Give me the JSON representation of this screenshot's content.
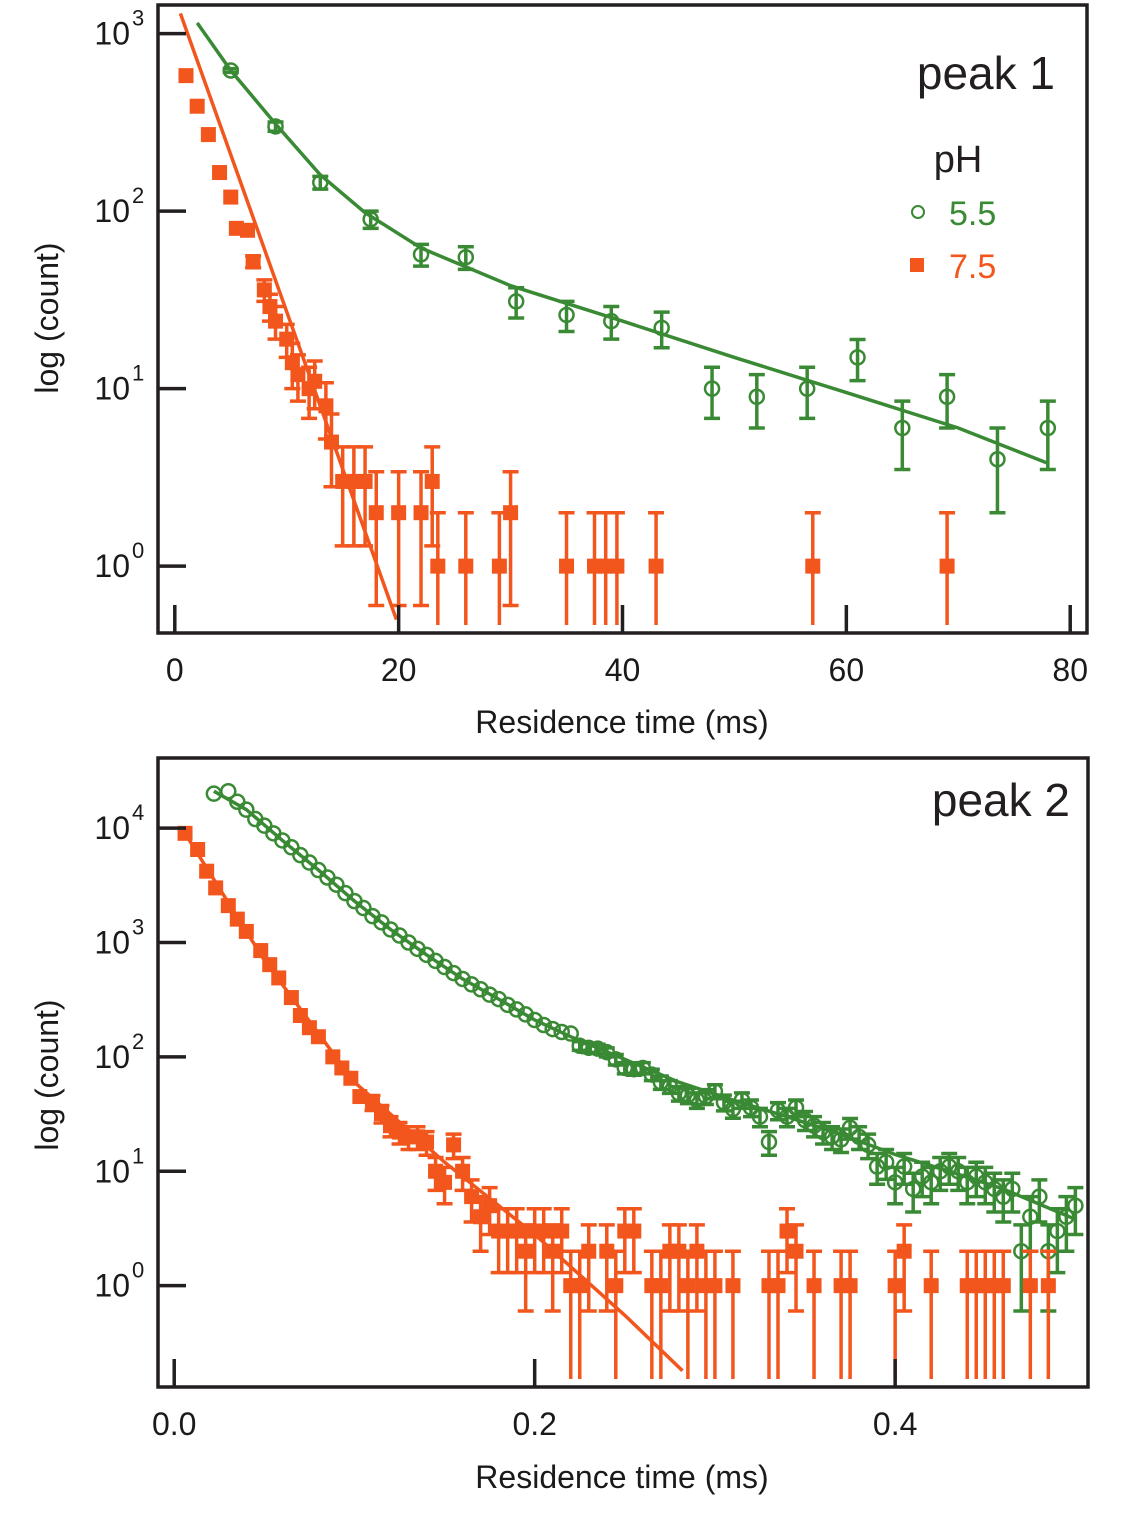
{
  "colors": {
    "green": "#3a8a35",
    "orange": "#f2561d",
    "axis": "#231f20"
  },
  "chart_data": [
    {
      "type": "scatter",
      "panel_label": "peak 1",
      "xlabel": "Residence time (ms)",
      "ylabel": "log (count)",
      "yscale": "log",
      "xlim": [
        -1.5,
        81.5
      ],
      "ylim": [
        0.42,
        1450
      ],
      "xticks": [
        0,
        20,
        40,
        60,
        80
      ],
      "xtick_labels": [
        "0",
        "20",
        "40",
        "60",
        "80"
      ],
      "yticks": [
        1,
        10,
        100,
        1000
      ],
      "ytick_labels": [
        {
          "base": "10",
          "exp": "0"
        },
        {
          "base": "10",
          "exp": "1"
        },
        {
          "base": "10",
          "exp": "2"
        },
        {
          "base": "10",
          "exp": "3"
        }
      ],
      "legend": {
        "title": "pH",
        "placement": "top-right",
        "entries": [
          "5.5",
          "7.5"
        ]
      },
      "series": [
        {
          "name": "5.5",
          "marker": "open-circle",
          "color_key": "green",
          "x": [
            5,
            9,
            13,
            17.5,
            22,
            26,
            30.5,
            35,
            39,
            43.5,
            48,
            52,
            56.5,
            61,
            65,
            69,
            73.5,
            78
          ],
          "y": [
            620,
            300,
            145,
            90,
            57,
            55,
            31,
            26,
            24,
            22,
            10,
            9,
            10,
            15,
            6,
            9,
            4,
            6
          ],
          "yerr_lo": [
            15,
            18,
            12,
            10,
            8,
            8,
            6,
            5,
            5,
            5,
            3.2,
            3,
            3.2,
            3.9,
            2.5,
            3,
            2,
            2.5
          ],
          "yerr_hi": [
            15,
            18,
            12,
            10,
            8,
            8,
            6,
            5,
            5,
            5,
            3.2,
            3,
            3.2,
            3.9,
            2.5,
            3,
            2,
            2.5
          ],
          "fit": {
            "x": [
              2,
              5,
              9,
              13,
              17,
              22,
              30,
              40,
              50,
              60,
              70,
              78
            ],
            "y": [
              1150,
              620,
              310,
              160,
              98,
              62,
              38,
              24,
              15,
              9.5,
              6,
              3.8
            ]
          }
        },
        {
          "name": "7.5",
          "marker": "filled-square",
          "color_key": "orange",
          "x": [
            1,
            2,
            3,
            4,
            5,
            5.5,
            6.5,
            7,
            8,
            8.5,
            9,
            10,
            10.5,
            11,
            12,
            12.5,
            13.5,
            14,
            15,
            16,
            17,
            18,
            20,
            22,
            23,
            23.5,
            26,
            29,
            30,
            35,
            37.5,
            38.5,
            39.5,
            43,
            57,
            69
          ],
          "y": [
            580,
            390,
            270,
            165,
            120,
            80,
            78,
            52,
            36,
            29,
            24,
            19,
            14,
            12,
            10,
            11,
            8,
            5,
            3,
            3,
            3,
            2,
            2,
            2,
            3,
            1,
            1,
            1,
            2,
            1,
            1,
            1,
            1,
            1,
            1,
            1
          ],
          "yerr_lo": [
            0,
            0,
            0,
            0,
            0,
            0,
            0,
            4,
            5,
            5,
            5,
            4,
            4,
            3.5,
            3.2,
            3.3,
            2.8,
            2.2,
            1.7,
            1.7,
            1.7,
            1.4,
            1.4,
            1.4,
            1.7,
            1,
            1,
            1,
            1.4,
            1,
            1,
            1,
            1,
            1,
            1,
            1
          ],
          "yerr_hi": [
            0,
            0,
            0,
            0,
            0,
            0,
            0,
            4,
            5,
            5,
            5,
            4,
            4,
            3.5,
            3.2,
            3.3,
            2.8,
            2.2,
            1.7,
            1.7,
            1.7,
            1.4,
            1.4,
            1.4,
            1.7,
            1,
            1,
            1,
            1.4,
            1,
            1,
            1,
            1,
            1,
            1,
            1
          ],
          "fit": {
            "x": [
              0.5,
              19.8
            ],
            "y": [
              1300,
              0.5
            ]
          }
        }
      ]
    },
    {
      "type": "scatter",
      "panel_label": "peak 2",
      "xlabel": "Residence time (ms)",
      "ylabel": "log (count)",
      "yscale": "log",
      "xlim": [
        -0.009,
        0.507
      ],
      "ylim": [
        0.13,
        41000
      ],
      "xticks": [
        0.0,
        0.2,
        0.4
      ],
      "xtick_labels": [
        "0.0",
        "0.2",
        "0.4"
      ],
      "yticks": [
        1,
        10,
        100,
        1000,
        10000
      ],
      "ytick_labels": [
        {
          "base": "10",
          "exp": "0"
        },
        {
          "base": "10",
          "exp": "1"
        },
        {
          "base": "10",
          "exp": "2"
        },
        {
          "base": "10",
          "exp": "3"
        },
        {
          "base": "10",
          "exp": "4"
        }
      ],
      "series": [
        {
          "name": "5.5",
          "marker": "open-circle",
          "color_key": "green",
          "x": [
            0.022,
            0.03,
            0.035,
            0.04,
            0.045,
            0.05,
            0.055,
            0.06,
            0.065,
            0.07,
            0.075,
            0.08,
            0.085,
            0.09,
            0.095,
            0.1,
            0.105,
            0.11,
            0.115,
            0.12,
            0.125,
            0.13,
            0.135,
            0.14,
            0.145,
            0.15,
            0.155,
            0.16,
            0.165,
            0.17,
            0.175,
            0.18,
            0.185,
            0.19,
            0.195,
            0.2,
            0.205,
            0.21,
            0.215,
            0.22,
            0.225,
            0.23,
            0.235,
            0.24,
            0.245,
            0.25,
            0.255,
            0.26,
            0.265,
            0.27,
            0.275,
            0.28,
            0.285,
            0.29,
            0.295,
            0.3,
            0.305,
            0.31,
            0.315,
            0.32,
            0.325,
            0.33,
            0.335,
            0.34,
            0.345,
            0.35,
            0.355,
            0.36,
            0.365,
            0.37,
            0.375,
            0.38,
            0.385,
            0.39,
            0.395,
            0.4,
            0.405,
            0.41,
            0.415,
            0.42,
            0.425,
            0.43,
            0.435,
            0.44,
            0.445,
            0.45,
            0.455,
            0.46,
            0.465,
            0.47,
            0.475,
            0.48,
            0.485,
            0.49,
            0.495,
            0.5
          ],
          "y": [
            20000,
            21000,
            17000,
            14500,
            12000,
            10500,
            9000,
            7800,
            6800,
            5800,
            5000,
            4300,
            3700,
            3200,
            2700,
            2300,
            2000,
            1700,
            1500,
            1300,
            1150,
            1000,
            880,
            780,
            690,
            610,
            540,
            480,
            430,
            390,
            350,
            320,
            285,
            260,
            235,
            210,
            190,
            175,
            165,
            160,
            125,
            120,
            118,
            110,
            95,
            80,
            78,
            80,
            70,
            60,
            55,
            48,
            46,
            42,
            45,
            50,
            40,
            35,
            42,
            36,
            30,
            18,
            34,
            30,
            36,
            28,
            25,
            22,
            20,
            19,
            24,
            20,
            17,
            11,
            12,
            8,
            11,
            7,
            9,
            8,
            10,
            11,
            10,
            8,
            9,
            8,
            7,
            6,
            7,
            2,
            4,
            6,
            2,
            3,
            4,
            5
          ],
          "yerr_lo": [
            0,
            0,
            0,
            0,
            0,
            0,
            0,
            0,
            0,
            0,
            0,
            0,
            0,
            0,
            0,
            0,
            0,
            0,
            0,
            0,
            0,
            0,
            0,
            0,
            0,
            0,
            0,
            0,
            0,
            0,
            0,
            0,
            0,
            0,
            0,
            0,
            0,
            0,
            0,
            0,
            11,
            11,
            11,
            10,
            10,
            9,
            9,
            9,
            8,
            8,
            7,
            7,
            7,
            6.5,
            6.7,
            7,
            6.3,
            5.9,
            6.5,
            6,
            5.5,
            4.2,
            5.8,
            5.5,
            6,
            5.3,
            5,
            4.7,
            4.5,
            4.4,
            4.9,
            4.5,
            4.1,
            3.3,
            3.5,
            2.8,
            3.3,
            2.6,
            3,
            2.8,
            3.2,
            3.3,
            3.2,
            2.8,
            3,
            2.8,
            2.6,
            2.4,
            2.6,
            1.4,
            2,
            2.4,
            1.4,
            1.7,
            2,
            2.2
          ],
          "yerr_hi": [
            0,
            0,
            0,
            0,
            0,
            0,
            0,
            0,
            0,
            0,
            0,
            0,
            0,
            0,
            0,
            0,
            0,
            0,
            0,
            0,
            0,
            0,
            0,
            0,
            0,
            0,
            0,
            0,
            0,
            0,
            0,
            0,
            0,
            0,
            0,
            0,
            0,
            0,
            0,
            0,
            11,
            11,
            11,
            10,
            10,
            9,
            9,
            9,
            8,
            8,
            7,
            7,
            7,
            6.5,
            6.7,
            7,
            6.3,
            5.9,
            6.5,
            6,
            5.5,
            4.2,
            5.8,
            5.5,
            6,
            5.3,
            5,
            4.7,
            4.5,
            4.4,
            4.9,
            4.5,
            4.1,
            3.3,
            3.5,
            2.8,
            3.3,
            2.6,
            3,
            2.8,
            3.2,
            3.3,
            3.2,
            2.8,
            3,
            2.8,
            2.6,
            2.4,
            2.6,
            1.4,
            2,
            2.4,
            1.4,
            1.7,
            2,
            2.2
          ],
          "fit": {
            "x": [
              0.022,
              0.04,
              0.06,
              0.08,
              0.1,
              0.12,
              0.14,
              0.16,
              0.18,
              0.2,
              0.22,
              0.25,
              0.28,
              0.31,
              0.34,
              0.37,
              0.4,
              0.43,
              0.46,
              0.5
            ],
            "y": [
              21000,
              14500,
              7800,
              4300,
              2300,
              1300,
              780,
              480,
              320,
              210,
              150,
              95,
              60,
              42,
              30,
              21,
              14,
              10,
              7,
              3.8
            ]
          }
        },
        {
          "name": "7.5",
          "marker": "filled-square",
          "color_key": "orange",
          "x": [
            0.006,
            0.013,
            0.018,
            0.023,
            0.03,
            0.035,
            0.04,
            0.048,
            0.053,
            0.058,
            0.065,
            0.07,
            0.075,
            0.08,
            0.088,
            0.093,
            0.098,
            0.103,
            0.11,
            0.115,
            0.12,
            0.125,
            0.13,
            0.135,
            0.14,
            0.145,
            0.15,
            0.155,
            0.16,
            0.165,
            0.17,
            0.175,
            0.18,
            0.185,
            0.19,
            0.195,
            0.2,
            0.205,
            0.21,
            0.215,
            0.22,
            0.225,
            0.23,
            0.24,
            0.245,
            0.25,
            0.255,
            0.265,
            0.27,
            0.275,
            0.28,
            0.285,
            0.29,
            0.295,
            0.3,
            0.31,
            0.33,
            0.335,
            0.34,
            0.345,
            0.355,
            0.37,
            0.375,
            0.4,
            0.405,
            0.42,
            0.44,
            0.445,
            0.45,
            0.455,
            0.46,
            0.475,
            0.485
          ],
          "y": [
            9000,
            6500,
            4200,
            3000,
            2100,
            1600,
            1250,
            850,
            640,
            490,
            330,
            230,
            180,
            150,
            100,
            80,
            65,
            45,
            40,
            32,
            25,
            22,
            20,
            20,
            18,
            10,
            8,
            17,
            10,
            6,
            4,
            5,
            3,
            3,
            3,
            2,
            3,
            3,
            2,
            3,
            1,
            1,
            2,
            2,
            1,
            3,
            3,
            1,
            1,
            2,
            2,
            1,
            2,
            1,
            1,
            1,
            1,
            1,
            3,
            2,
            1,
            1,
            1,
            1,
            2,
            1,
            1,
            1,
            1,
            1,
            1,
            1,
            1
          ],
          "yerr_lo": [
            0,
            0,
            0,
            0,
            0,
            0,
            0,
            0,
            0,
            0,
            0,
            0,
            0,
            0,
            0,
            0,
            0,
            0,
            6,
            5.6,
            5,
            4.7,
            4.5,
            4.5,
            4.2,
            3.2,
            2.8,
            4.1,
            3.2,
            2.4,
            2,
            2.2,
            1.7,
            1.7,
            1.7,
            1.4,
            1.7,
            1.7,
            1.4,
            1.7,
            1,
            1,
            1.4,
            1.4,
            1,
            1.7,
            1.7,
            1,
            1,
            1.4,
            1.4,
            1,
            1.4,
            1,
            1,
            1,
            1,
            1,
            1.7,
            1.4,
            1,
            1,
            1,
            1,
            1.4,
            1,
            1,
            1,
            1,
            1,
            1,
            1,
            1
          ],
          "yerr_hi": [
            0,
            0,
            0,
            0,
            0,
            0,
            0,
            0,
            0,
            0,
            0,
            0,
            0,
            0,
            0,
            0,
            0,
            0,
            6,
            5.6,
            5,
            4.7,
            4.5,
            4.5,
            4.2,
            3.2,
            2.8,
            4.1,
            3.2,
            2.4,
            2,
            2.2,
            1.7,
            1.7,
            1.7,
            1.4,
            1.7,
            1.7,
            1.4,
            1.7,
            1,
            1,
            1.4,
            1.4,
            1,
            1.7,
            1.7,
            1,
            1,
            1.4,
            1.4,
            1,
            1.4,
            1,
            1,
            1,
            1,
            1,
            1.7,
            1.4,
            1,
            1,
            1,
            1,
            1.4,
            1,
            1,
            1,
            1,
            1,
            1,
            1,
            1
          ],
          "fit": {
            "x": [
              0.006,
              0.05,
              0.1,
              0.15,
              0.2,
              0.25,
              0.282
            ],
            "y": [
              9000,
              700,
              60,
              12,
              2.8,
              0.55,
              0.18
            ]
          }
        }
      ]
    }
  ]
}
